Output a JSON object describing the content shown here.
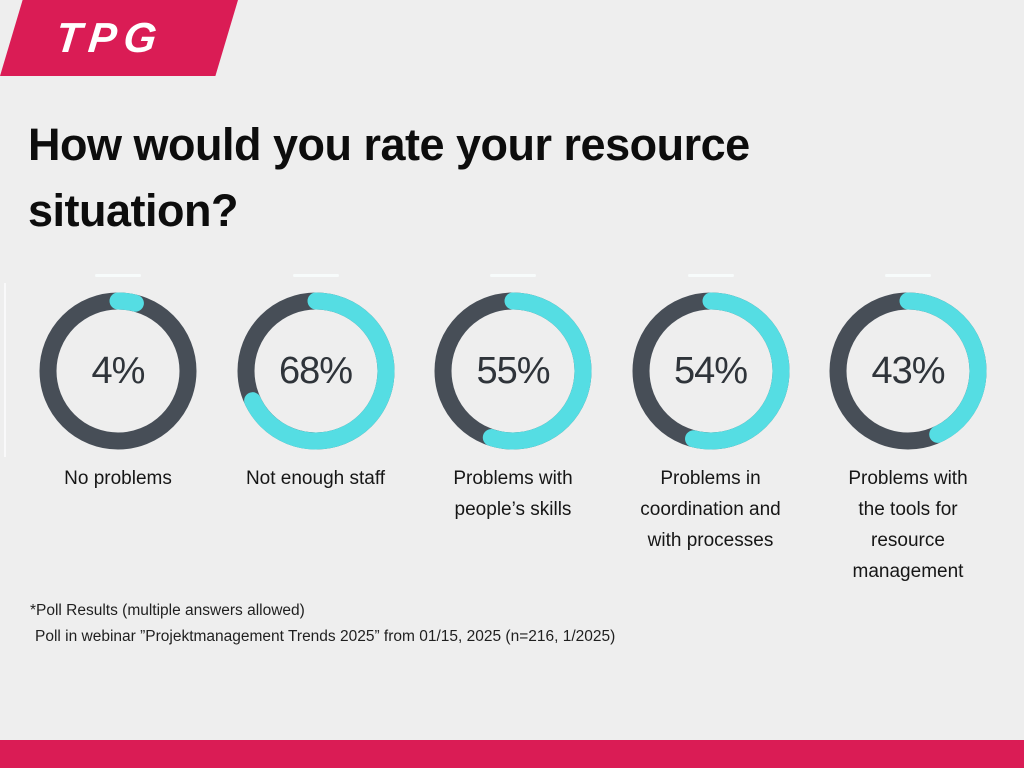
{
  "brand": {
    "logo_text": "TPG",
    "color": "#DA1C55"
  },
  "title": {
    "full": "How would you rate your resource situation?",
    "lines": [
      "How would you rate your resource",
      "situation?"
    ]
  },
  "chart_data": {
    "type": "pie",
    "variant": "donut-multiples",
    "title": "How would you rate your resource situation?",
    "unit": "%",
    "categories": [
      "No problems",
      "Not enough staff",
      "Problems with people’s skills",
      "Problems in coordination and with processes",
      "Problems with the tools for resource management"
    ],
    "values": [
      4,
      68,
      55,
      54,
      43
    ],
    "value_labels": [
      "4%",
      "68%",
      "55%",
      "54%",
      "43%"
    ],
    "category_label_lines": [
      [
        "No problems"
      ],
      [
        "Not enough staff"
      ],
      [
        "Problems with",
        "people’s skills"
      ],
      [
        "Problems in",
        "coordination and",
        "with processes"
      ],
      [
        "Problems with",
        "the tools for",
        "resource",
        "management"
      ]
    ],
    "colors": {
      "value_arc": "#55DDE3",
      "track": "#474E57"
    },
    "legend": "none",
    "arc_start": "top",
    "arc_direction": "clockwise"
  },
  "footnotes": {
    "line1": "*Poll Results (multiple answers allowed)",
    "line2": "Poll in webinar ”Projektmanagement Trends 2025” from 01/15, 2025 (n=216, 1/2025)"
  }
}
